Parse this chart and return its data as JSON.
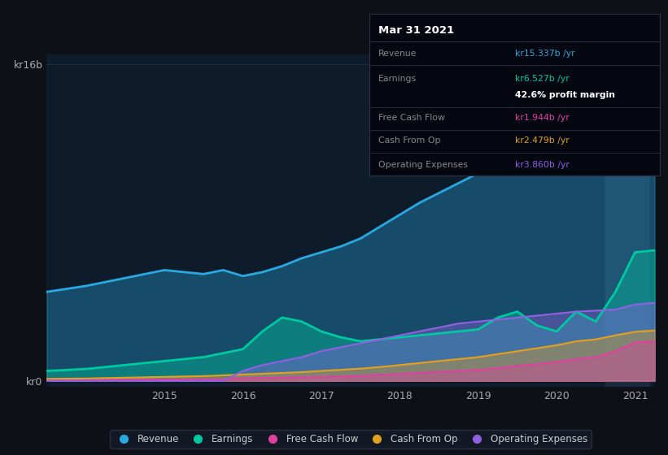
{
  "background_color": "#0d1117",
  "plot_bg_color": "#0d1b2a",
  "x_ticks": [
    2015,
    2016,
    2017,
    2018,
    2019,
    2020,
    2021
  ],
  "colors": {
    "revenue": "#29a8e0",
    "earnings": "#00c8a0",
    "free_cash_flow": "#e040a0",
    "cash_from_op": "#e0a020",
    "operating_expenses": "#9060e0"
  },
  "tooltip": {
    "date": "Mar 31 2021",
    "revenue": "kr15.337b",
    "earnings": "kr6.527b",
    "profit_margin": "42.6%",
    "free_cash_flow": "kr1.944b",
    "cash_from_op": "kr2.479b",
    "operating_expenses": "kr3.860b"
  },
  "series": {
    "dates": [
      2013.5,
      2014.0,
      2014.25,
      2014.5,
      2014.75,
      2015.0,
      2015.25,
      2015.5,
      2015.75,
      2016.0,
      2016.25,
      2016.5,
      2016.75,
      2017.0,
      2017.25,
      2017.5,
      2017.75,
      2018.0,
      2018.25,
      2018.5,
      2018.75,
      2019.0,
      2019.25,
      2019.5,
      2019.75,
      2020.0,
      2020.25,
      2020.5,
      2020.75,
      2021.0,
      2021.25
    ],
    "revenue": [
      4.5,
      4.8,
      5.0,
      5.2,
      5.4,
      5.6,
      5.5,
      5.4,
      5.6,
      5.3,
      5.5,
      5.8,
      6.2,
      6.5,
      6.8,
      7.2,
      7.8,
      8.4,
      9.0,
      9.5,
      10.0,
      10.5,
      11.0,
      11.5,
      12.0,
      12.5,
      13.0,
      13.5,
      14.5,
      15.3,
      15.5
    ],
    "earnings": [
      0.5,
      0.6,
      0.7,
      0.8,
      0.9,
      1.0,
      1.1,
      1.2,
      1.4,
      1.6,
      2.5,
      3.2,
      3.0,
      2.5,
      2.2,
      2.0,
      2.1,
      2.2,
      2.3,
      2.4,
      2.5,
      2.6,
      3.2,
      3.5,
      2.8,
      2.5,
      3.5,
      3.0,
      4.5,
      6.5,
      6.6
    ],
    "free_cash_flow": [
      0.05,
      0.05,
      0.06,
      0.06,
      0.07,
      0.07,
      0.08,
      0.09,
      0.1,
      0.12,
      0.14,
      0.16,
      0.18,
      0.2,
      0.22,
      0.25,
      0.3,
      0.35,
      0.4,
      0.45,
      0.5,
      0.55,
      0.65,
      0.75,
      0.85,
      0.95,
      1.1,
      1.2,
      1.5,
      1.94,
      2.0
    ],
    "cash_from_op": [
      0.1,
      0.12,
      0.14,
      0.16,
      0.18,
      0.2,
      0.22,
      0.24,
      0.28,
      0.32,
      0.36,
      0.4,
      0.44,
      0.5,
      0.56,
      0.62,
      0.7,
      0.8,
      0.9,
      1.0,
      1.1,
      1.2,
      1.35,
      1.5,
      1.65,
      1.8,
      2.0,
      2.1,
      2.3,
      2.48,
      2.55
    ],
    "operating_expenses": [
      0.0,
      0.0,
      0.0,
      0.0,
      0.0,
      0.0,
      0.0,
      0.0,
      0.0,
      0.5,
      0.8,
      1.0,
      1.2,
      1.5,
      1.7,
      1.9,
      2.1,
      2.3,
      2.5,
      2.7,
      2.9,
      3.0,
      3.1,
      3.2,
      3.3,
      3.4,
      3.5,
      3.55,
      3.6,
      3.86,
      3.95
    ]
  }
}
